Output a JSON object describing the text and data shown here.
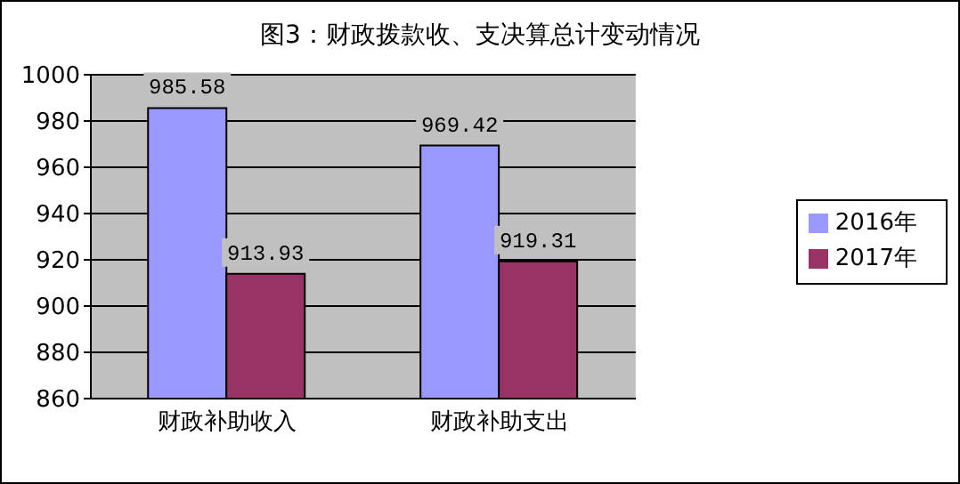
{
  "chart_data": {
    "type": "bar",
    "title": "图3：财政拨款收、支决算总计变动情况",
    "categories": [
      "财政补助收入",
      "财政补助支出"
    ],
    "series": [
      {
        "name": "2016年",
        "color": "#9999ff",
        "values": [
          985.58,
          969.42
        ]
      },
      {
        "name": "2017年",
        "color": "#993366",
        "values": [
          913.93,
          919.31
        ]
      }
    ],
    "ylim": [
      860,
      1000
    ],
    "yticks": [
      860,
      880,
      900,
      920,
      940,
      960,
      980,
      1000
    ],
    "grid": "y",
    "legend": "right",
    "data_labels": true
  }
}
